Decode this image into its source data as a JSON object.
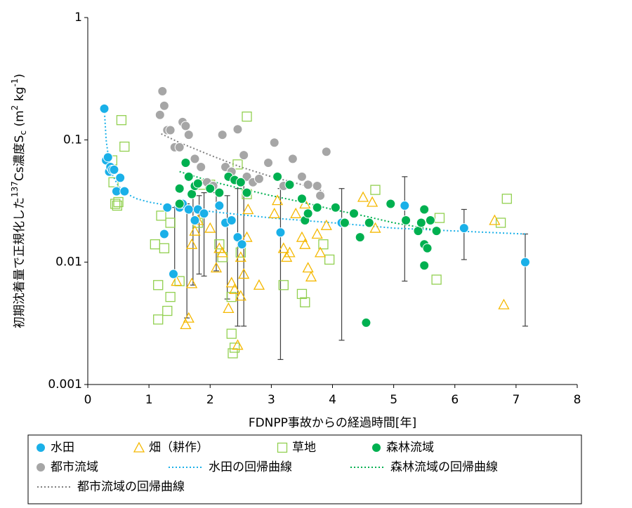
{
  "chart_data": {
    "type": "scatter",
    "ylabel": [
      "初期沈着量で正規化した",
      "137",
      "Cs濃度S",
      "c",
      " (m",
      "2",
      " kg",
      "-1",
      ")"
    ],
    "xlabel": "FDNPP事故からの経過時間[年]",
    "xlim": [
      0,
      8
    ],
    "xticks": [
      0,
      1,
      2,
      3,
      4,
      5,
      6,
      7,
      8
    ],
    "ylim": [
      0.001,
      1
    ],
    "yticks": [
      0.001,
      0.01,
      0.1,
      1
    ],
    "log_y": true,
    "grid": false,
    "series": [
      {
        "name": "水田",
        "marker": "circle",
        "color": "#1ab0e8",
        "x": [
          0.27,
          0.3,
          0.33,
          0.35,
          0.37,
          0.4,
          0.43,
          0.47,
          0.53,
          0.6,
          1.25,
          1.3,
          1.4,
          1.5,
          1.55,
          1.65,
          1.75,
          1.8,
          1.9,
          2.15,
          2.25,
          2.35,
          2.45,
          2.52,
          3.15,
          4.15,
          5.18,
          6.15,
          7.15
        ],
        "values": [
          0.18,
          0.068,
          0.072,
          0.055,
          0.06,
          0.057,
          0.057,
          0.038,
          0.049,
          0.038,
          0.017,
          0.028,
          0.008,
          0.028,
          0.03,
          0.027,
          0.022,
          0.027,
          0.025,
          0.029,
          0.021,
          0.022,
          0.016,
          0.014,
          0.0175,
          0.021,
          0.029,
          0.019,
          0.01
        ]
      },
      {
        "name": "畑（耕作）",
        "marker": "triangle",
        "color": "#f5b800",
        "x": [
          1.45,
          1.6,
          1.65,
          1.7,
          1.7,
          1.75,
          1.8,
          2.0,
          2.1,
          2.15,
          2.2,
          2.3,
          2.35,
          2.4,
          2.45,
          2.5,
          2.5,
          2.55,
          2.6,
          2.62,
          2.8,
          3.05,
          3.1,
          3.2,
          3.25,
          3.3,
          3.4,
          3.5,
          3.55,
          3.55,
          3.6,
          3.65,
          3.75,
          3.8,
          3.9,
          4.5,
          4.65,
          4.7,
          6.65,
          6.8
        ],
        "values": [
          0.007,
          0.0031,
          0.0035,
          0.0067,
          0.014,
          0.018,
          0.022,
          0.019,
          0.009,
          0.013,
          0.012,
          0.0042,
          0.0068,
          0.006,
          0.0021,
          0.011,
          0.0053,
          0.008,
          0.016,
          0.027,
          0.0065,
          0.025,
          0.032,
          0.013,
          0.011,
          0.012,
          0.025,
          0.016,
          0.014,
          0.03,
          0.009,
          0.0076,
          0.017,
          0.012,
          0.02,
          0.034,
          0.031,
          0.019,
          0.022,
          0.0045
        ]
      },
      {
        "name": "草地",
        "marker": "square",
        "color": "#92d050",
        "x": [
          0.4,
          0.42,
          0.45,
          0.48,
          0.5,
          0.55,
          0.6,
          1.1,
          1.15,
          1.15,
          1.2,
          1.25,
          1.3,
          1.35,
          1.35,
          1.5,
          1.8,
          1.85,
          2.0,
          2.15,
          2.2,
          2.35,
          2.35,
          2.37,
          2.4,
          2.45,
          2.5,
          2.6,
          2.6,
          3.2,
          3.5,
          3.55,
          3.85,
          3.95,
          4.7,
          5.7,
          5.75,
          6.75,
          6.85
        ],
        "values": [
          0.068,
          0.045,
          0.03,
          0.029,
          0.031,
          0.145,
          0.088,
          0.014,
          0.0065,
          0.0034,
          0.024,
          0.013,
          0.004,
          0.0052,
          0.021,
          0.007,
          0.021,
          0.043,
          0.043,
          0.014,
          0.011,
          0.0052,
          0.0026,
          0.0018,
          0.002,
          0.063,
          0.012,
          0.155,
          0.036,
          0.0065,
          0.0055,
          0.0047,
          0.014,
          0.0105,
          0.039,
          0.0072,
          0.023,
          0.021,
          0.033
        ]
      },
      {
        "name": "森林流域",
        "marker": "circle",
        "color": "#00b050",
        "x": [
          1.5,
          1.5,
          1.6,
          1.65,
          1.7,
          1.75,
          1.8,
          2.0,
          2.15,
          2.3,
          2.4,
          2.5,
          2.6,
          3.1,
          3.3,
          3.5,
          3.55,
          3.6,
          3.75,
          4.05,
          4.2,
          4.35,
          4.45,
          4.55,
          4.6,
          4.95,
          5.2,
          5.4,
          5.45,
          5.5,
          5.5,
          5.5,
          5.55,
          5.6,
          5.7
        ],
        "values": [
          0.04,
          0.03,
          0.065,
          0.05,
          0.036,
          0.042,
          0.044,
          0.04,
          0.037,
          0.05,
          0.047,
          0.045,
          0.037,
          0.05,
          0.043,
          0.033,
          0.022,
          0.025,
          0.028,
          0.028,
          0.021,
          0.025,
          0.016,
          0.0032,
          0.021,
          0.03,
          0.022,
          0.018,
          0.021,
          0.027,
          0.014,
          0.0094,
          0.013,
          0.022,
          0.018
        ]
      },
      {
        "name": "都市流域",
        "marker": "circle",
        "color": "#a6a6a6",
        "x": [
          1.18,
          1.22,
          1.25,
          1.3,
          1.35,
          1.42,
          1.5,
          1.55,
          1.6,
          1.65,
          1.75,
          1.85,
          1.95,
          2.05,
          2.2,
          2.25,
          2.35,
          2.45,
          2.55,
          2.6,
          2.7,
          2.8,
          2.95,
          3.05,
          3.1,
          3.2,
          3.35,
          3.5,
          3.6,
          3.75,
          3.8,
          3.9
        ],
        "values": [
          0.16,
          0.25,
          0.19,
          0.12,
          0.12,
          0.087,
          0.087,
          0.14,
          0.13,
          0.11,
          0.07,
          0.06,
          0.045,
          0.042,
          0.11,
          0.06,
          0.055,
          0.122,
          0.075,
          0.05,
          0.045,
          0.048,
          0.065,
          0.095,
          0.05,
          0.042,
          0.07,
          0.05,
          0.043,
          0.042,
          0.035,
          0.08
        ]
      },
      {
        "name": "水田の回帰曲線",
        "marker": "line",
        "color": "#1ab0e8",
        "x": [
          0.27,
          0.3,
          0.35,
          0.4,
          0.5,
          0.6,
          0.8,
          1,
          1.5,
          2,
          3,
          4,
          5,
          6,
          7.15
        ],
        "values": [
          0.18,
          0.1,
          0.065,
          0.052,
          0.042,
          0.037,
          0.033,
          0.031,
          0.028,
          0.026,
          0.023,
          0.021,
          0.019,
          0.018,
          0.017
        ]
      },
      {
        "name": "森林流域の回帰曲線",
        "marker": "line",
        "color": "#00b050",
        "x": [
          1.5,
          2,
          2.5,
          3,
          3.5,
          4,
          4.5,
          5,
          5.5,
          5.75
        ],
        "values": [
          0.055,
          0.046,
          0.04,
          0.035,
          0.031,
          0.027,
          0.024,
          0.021,
          0.019,
          0.018
        ]
      },
      {
        "name": "都市流域の回帰曲線",
        "marker": "line",
        "color": "#808080",
        "x": [
          1.2,
          1.5,
          2,
          2.5,
          3,
          3.5,
          3.85
        ],
        "values": [
          0.112,
          0.095,
          0.075,
          0.06,
          0.05,
          0.043,
          0.038
        ]
      }
    ],
    "error_bars": {
      "color": "#404040",
      "x": [
        1.42,
        1.62,
        1.72,
        1.82,
        1.9,
        2.1,
        2.28,
        2.45,
        2.55,
        3.15,
        4.15,
        5.18,
        6.15,
        7.15
      ],
      "low": [
        0.0075,
        0.0035,
        0.0065,
        0.008,
        0.0077,
        0.0085,
        0.005,
        0.003,
        0.003,
        0.0016,
        0.0023,
        0.007,
        0.0105,
        0.003
      ],
      "high": [
        0.028,
        0.03,
        0.038,
        0.035,
        0.037,
        0.037,
        0.035,
        0.04,
        0.046,
        0.04,
        0.04,
        0.05,
        0.027,
        0.017
      ]
    }
  }
}
